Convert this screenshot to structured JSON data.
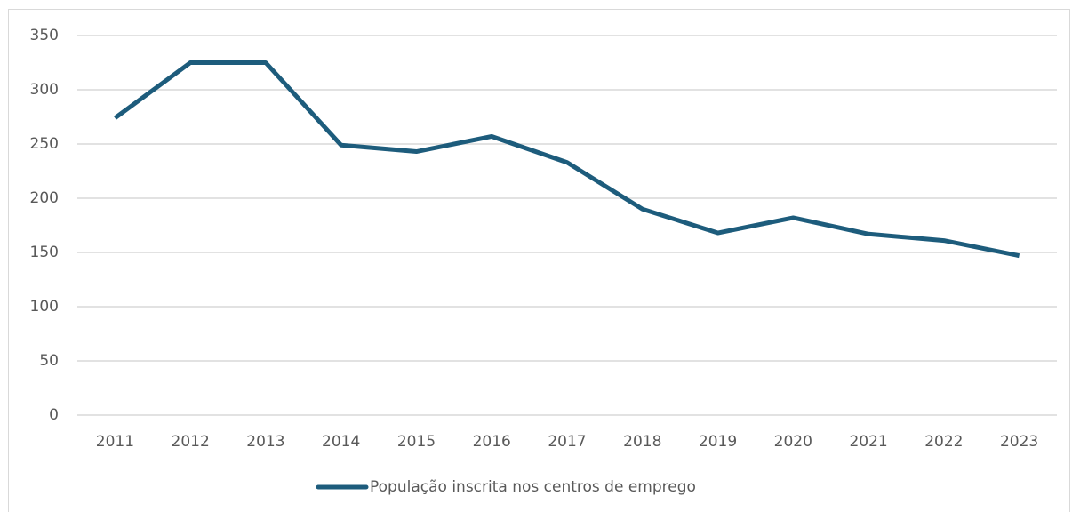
{
  "chart_data": {
    "type": "line",
    "categories": [
      "2011",
      "2012",
      "2013",
      "2014",
      "2015",
      "2016",
      "2017",
      "2018",
      "2019",
      "2020",
      "2021",
      "2022",
      "2023"
    ],
    "series": [
      {
        "name": "População inscrita nos centros de emprego",
        "color": "#1d5c7c",
        "values": [
          274,
          325,
          325,
          249,
          243,
          257,
          233,
          190,
          168,
          182,
          167,
          161,
          147
        ]
      }
    ],
    "ylim": [
      0,
      350
    ],
    "yticks": [
      0,
      50,
      100,
      150,
      200,
      250,
      300,
      350
    ],
    "grid": true,
    "legend": "bottom"
  }
}
